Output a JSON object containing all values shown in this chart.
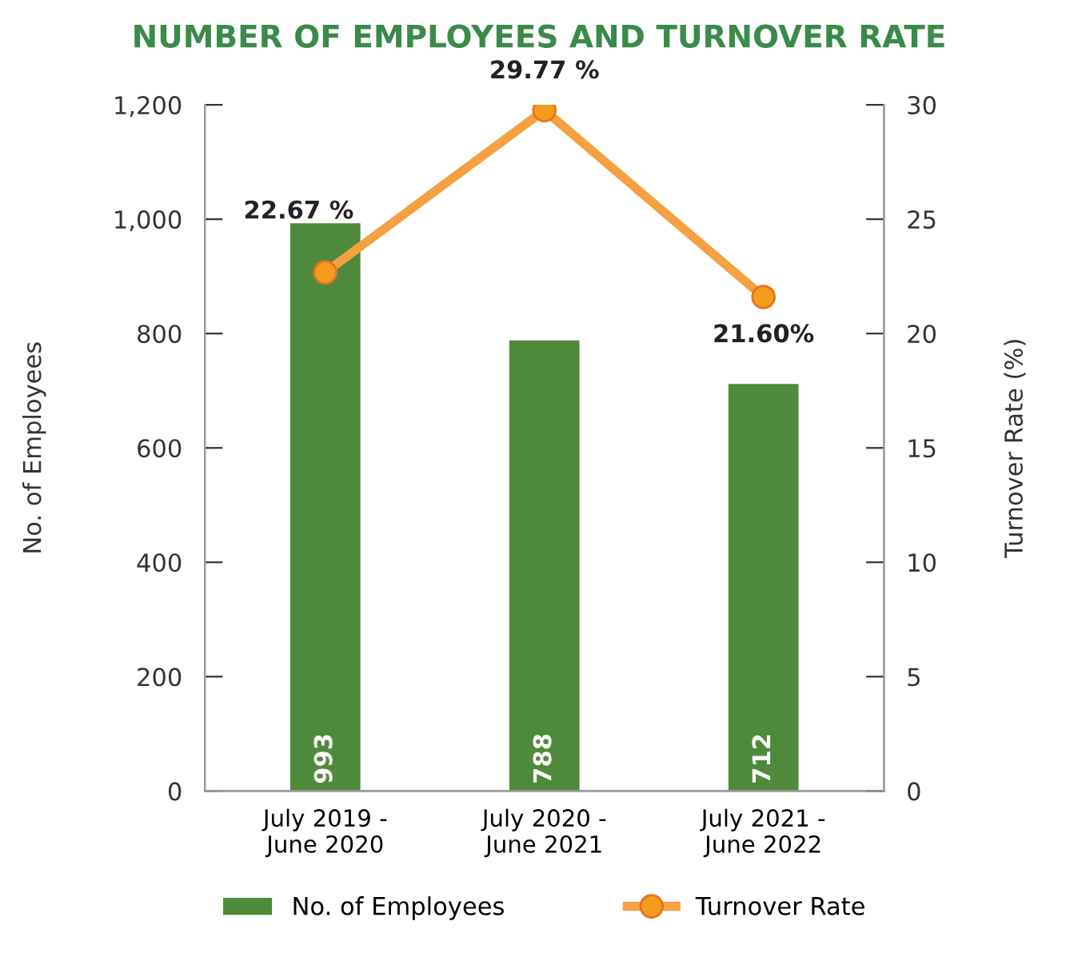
{
  "chart_data": {
    "type": "bar",
    "title": "NUMBER OF EMPLOYEES AND TURNOVER RATE",
    "categories": [
      "July 2019 -\nJune 2020",
      "July 2020 -\nJune 2021",
      "July 2021 -\nJune 2022"
    ],
    "series": [
      {
        "name": "No. of Employees",
        "color": "#4f8a3c",
        "values": [
          993,
          788,
          712
        ],
        "data_labels": true
      },
      {
        "name": "Turnover Rate",
        "type": "line",
        "axis": "y2",
        "color": "#f5a041",
        "values": [
          22.67,
          29.77,
          21.6
        ],
        "value_labels": [
          "22.67 %",
          "29.77 %",
          "21.60%"
        ],
        "marker": "circle"
      }
    ],
    "ylabel": "No. of Employees",
    "y2label": "Turnover Rate (%)",
    "ylim": [
      0,
      1200
    ],
    "yticks": [
      0,
      200,
      400,
      600,
      800,
      {
        "value": 1000,
        "label": "1,000"
      },
      {
        "value": 1200,
        "label": "1,200"
      }
    ],
    "y2lim": [
      0,
      30
    ],
    "y2ticks": [
      0,
      5,
      10,
      15,
      20,
      25,
      30
    ],
    "grid": false,
    "legend": "bottom"
  }
}
